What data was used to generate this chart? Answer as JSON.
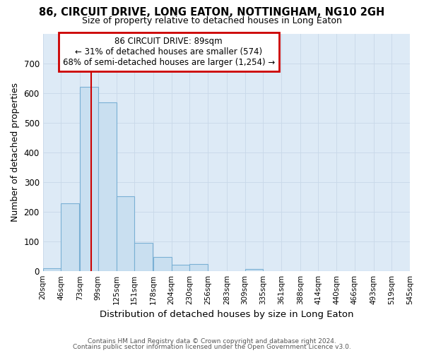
{
  "title1": "86, CIRCUIT DRIVE, LONG EATON, NOTTINGHAM, NG10 2GH",
  "title2": "Size of property relative to detached houses in Long Eaton",
  "xlabel": "Distribution of detached houses by size in Long Eaton",
  "ylabel": "Number of detached properties",
  "footer1": "Contains HM Land Registry data © Crown copyright and database right 2024.",
  "footer2": "Contains public sector information licensed under the Open Government Licence v3.0.",
  "annotation_line1": "86 CIRCUIT DRIVE: 89sqm",
  "annotation_line2": "← 31% of detached houses are smaller (574)",
  "annotation_line3": "68% of semi-detached houses are larger (1,254) →",
  "bin_edges": [
    20,
    46,
    73,
    99,
    125,
    151,
    178,
    204,
    230,
    256,
    283,
    309,
    335,
    361,
    388,
    414,
    440,
    466,
    493,
    519,
    545
  ],
  "bar_values": [
    10,
    228,
    620,
    568,
    252,
    95,
    47,
    22,
    24,
    0,
    0,
    8,
    0,
    0,
    0,
    0,
    0,
    0,
    0,
    0
  ],
  "bar_color": "#c9dff0",
  "bar_edge_color": "#7ab0d4",
  "vline_color": "#cc0000",
  "vline_x": 89,
  "annotation_box_color": "#cc0000",
  "annotation_box_fill": "#ffffff",
  "grid_color": "#c8d8e8",
  "background_color": "#ddeaf6",
  "ylim": [
    0,
    800
  ],
  "yticks": [
    0,
    100,
    200,
    300,
    400,
    500,
    600,
    700,
    800
  ]
}
